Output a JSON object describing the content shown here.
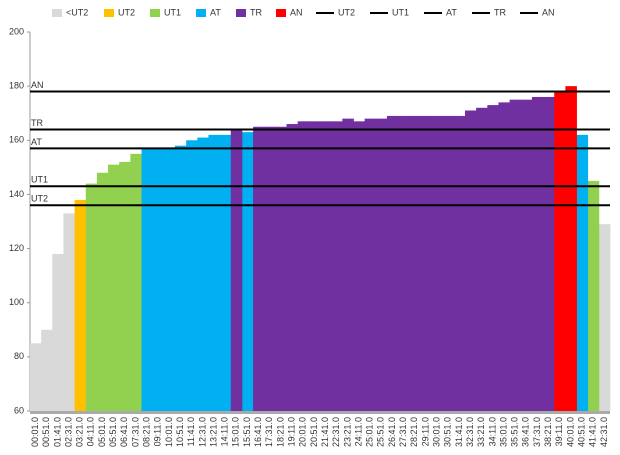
{
  "chart_data": {
    "type": "bar",
    "categories": [
      "00:01.0",
      "00:51.0",
      "01:41.0",
      "02:31.0",
      "03:21.0",
      "04:11.0",
      "05:01.0",
      "05:51.0",
      "06:41.0",
      "07:31.0",
      "08:21.0",
      "09:11.0",
      "10:01.0",
      "10:51.0",
      "11:41.0",
      "12:31.0",
      "13:21.0",
      "14:11.0",
      "15:01.0",
      "15:51.0",
      "16:41.0",
      "17:31.0",
      "18:21.0",
      "19:11.0",
      "20:01.0",
      "20:51.0",
      "21:41.0",
      "22:31.0",
      "23:21.0",
      "24:11.0",
      "25:01.0",
      "25:51.0",
      "26:41.0",
      "27:31.0",
      "28:21.0",
      "29:11.0",
      "30:01.0",
      "30:51.0",
      "31:41.0",
      "32:31.0",
      "33:21.0",
      "34:11.0",
      "35:01.0",
      "35:51.0",
      "36:41.0",
      "37:31.0",
      "38:21.0",
      "39:11.0",
      "40:01.0",
      "40:51.0",
      "41:41.0",
      "42:31.0"
    ],
    "series": [
      {
        "name": "<UT2",
        "color": "#d9d9d9",
        "values": [
          85,
          90,
          118,
          133,
          null,
          null,
          null,
          null,
          null,
          null,
          null,
          null,
          null,
          null,
          null,
          null,
          null,
          null,
          null,
          null,
          null,
          null,
          null,
          null,
          null,
          null,
          null,
          null,
          null,
          null,
          null,
          null,
          null,
          null,
          null,
          null,
          null,
          null,
          null,
          null,
          null,
          null,
          null,
          null,
          null,
          null,
          null,
          null,
          null,
          null,
          null,
          129
        ]
      },
      {
        "name": "UT2",
        "color": "#ffc000",
        "values": [
          null,
          null,
          null,
          null,
          138,
          null,
          null,
          null,
          null,
          null,
          null,
          null,
          null,
          null,
          null,
          null,
          null,
          null,
          null,
          null,
          null,
          null,
          null,
          null,
          null,
          null,
          null,
          null,
          null,
          null,
          null,
          null,
          null,
          null,
          null,
          null,
          null,
          null,
          null,
          null,
          null,
          null,
          null,
          null,
          null,
          null,
          null,
          null,
          null,
          null,
          null,
          null
        ]
      },
      {
        "name": "UT1",
        "color": "#92d050",
        "values": [
          null,
          null,
          null,
          null,
          null,
          144,
          148,
          151,
          152,
          155,
          null,
          null,
          null,
          null,
          null,
          null,
          null,
          null,
          null,
          null,
          null,
          null,
          null,
          null,
          null,
          null,
          null,
          null,
          null,
          null,
          null,
          null,
          null,
          null,
          null,
          null,
          null,
          null,
          null,
          null,
          null,
          null,
          null,
          null,
          null,
          null,
          null,
          null,
          null,
          null,
          145,
          null
        ]
      },
      {
        "name": "AT",
        "color": "#00b0f0",
        "values": [
          null,
          null,
          null,
          null,
          null,
          null,
          null,
          null,
          null,
          null,
          157,
          157,
          157,
          158,
          160,
          161,
          162,
          162,
          null,
          163,
          null,
          null,
          null,
          null,
          null,
          null,
          null,
          null,
          null,
          null,
          null,
          null,
          null,
          null,
          null,
          null,
          null,
          null,
          null,
          null,
          null,
          null,
          null,
          null,
          null,
          null,
          null,
          null,
          null,
          162,
          null,
          null
        ]
      },
      {
        "name": "TR",
        "color": "#7030a0",
        "values": [
          null,
          null,
          null,
          null,
          null,
          null,
          null,
          null,
          null,
          null,
          null,
          null,
          null,
          null,
          null,
          null,
          null,
          null,
          164,
          null,
          165,
          165,
          165,
          166,
          167,
          167,
          167,
          167,
          168,
          167,
          168,
          168,
          169,
          169,
          169,
          169,
          169,
          169,
          169,
          171,
          172,
          173,
          174,
          175,
          175,
          176,
          176,
          null,
          null,
          null,
          null,
          null
        ]
      },
      {
        "name": "AN",
        "color": "#ff0000",
        "values": [
          null,
          null,
          null,
          null,
          null,
          null,
          null,
          null,
          null,
          null,
          null,
          null,
          null,
          null,
          null,
          null,
          null,
          null,
          null,
          null,
          null,
          null,
          null,
          null,
          null,
          null,
          null,
          null,
          null,
          null,
          null,
          null,
          null,
          null,
          null,
          null,
          null,
          null,
          null,
          null,
          null,
          null,
          null,
          null,
          null,
          null,
          null,
          178,
          180,
          null,
          null,
          null
        ]
      }
    ],
    "lines": [
      {
        "name": "UT2",
        "color": "#000000",
        "value": 136
      },
      {
        "name": "UT1",
        "color": "#000000",
        "value": 143
      },
      {
        "name": "AT",
        "color": "#000000",
        "value": 157
      },
      {
        "name": "TR",
        "color": "#000000",
        "value": 164
      },
      {
        "name": "AN",
        "color": "#000000",
        "value": 178
      }
    ],
    "ylim": [
      60,
      200
    ],
    "yticks": [
      60,
      80,
      100,
      120,
      140,
      160,
      180,
      200
    ],
    "legend": "top"
  }
}
